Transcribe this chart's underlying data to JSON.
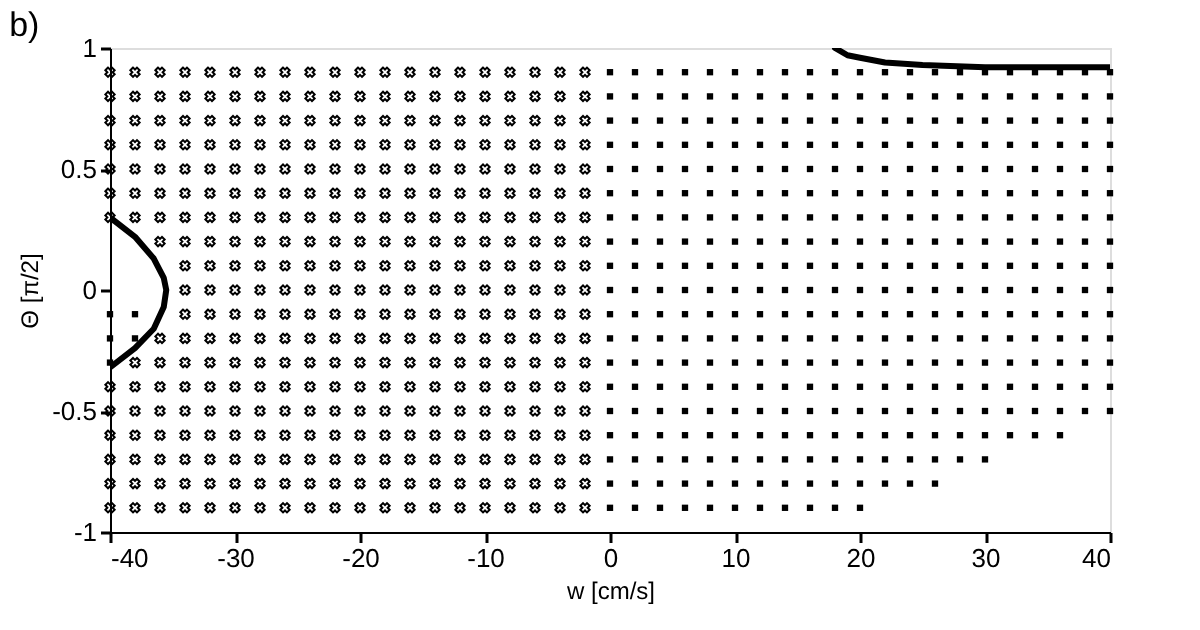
{
  "chart_data": {
    "type": "scatter",
    "xlabel": "w [cm/s]",
    "ylabel": "Θ [π/2]",
    "annotations": [
      "b)"
    ],
    "xlim": [
      -40,
      40
    ],
    "ylim": [
      -1,
      1
    ],
    "xticks": [
      -40,
      -30,
      -20,
      -10,
      0,
      10,
      20,
      30,
      40
    ],
    "yticks": [
      -1,
      -0.5,
      0,
      0.5,
      1
    ],
    "grid": false,
    "series": [
      {
        "marker": "cross",
        "color": "#000000",
        "x": [
          -40,
          -38,
          -36,
          -34,
          -32,
          -30,
          -28,
          -26,
          -24,
          -22,
          -20,
          -18,
          -16,
          -14,
          -12,
          -10,
          -8,
          -6,
          -4,
          -2
        ],
        "values": [
          0.9,
          0.9,
          0.9,
          0.9,
          0.9,
          0.9,
          0.9,
          0.9,
          0.9,
          0.9,
          0.9,
          0.9,
          0.9,
          0.9,
          0.9,
          0.9,
          0.9,
          0.9,
          0.9,
          0.9
        ]
      },
      {
        "marker": "cross",
        "color": "#000000",
        "x": [
          -40,
          -38,
          -36,
          -34,
          -32,
          -30,
          -28,
          -26,
          -24,
          -22,
          -20,
          -18,
          -16,
          -14,
          -12,
          -10,
          -8,
          -6,
          -4,
          -2
        ],
        "values": [
          0.8,
          0.8,
          0.8,
          0.8,
          0.8,
          0.8,
          0.8,
          0.8,
          0.8,
          0.8,
          0.8,
          0.8,
          0.8,
          0.8,
          0.8,
          0.8,
          0.8,
          0.8,
          0.8,
          0.8
        ]
      },
      {
        "marker": "cross",
        "color": "#000000",
        "x": [
          -40,
          -38,
          -36,
          -34,
          -32,
          -30,
          -28,
          -26,
          -24,
          -22,
          -20,
          -18,
          -16,
          -14,
          -12,
          -10,
          -8,
          -6,
          -4,
          -2
        ],
        "values": [
          0.7,
          0.7,
          0.7,
          0.7,
          0.7,
          0.7,
          0.7,
          0.7,
          0.7,
          0.7,
          0.7,
          0.7,
          0.7,
          0.7,
          0.7,
          0.7,
          0.7,
          0.7,
          0.7,
          0.7
        ]
      },
      {
        "marker": "cross",
        "color": "#000000",
        "x": [
          -40,
          -38,
          -36,
          -34,
          -32,
          -30,
          -28,
          -26,
          -24,
          -22,
          -20,
          -18,
          -16,
          -14,
          -12,
          -10,
          -8,
          -6,
          -4,
          -2
        ],
        "values": [
          0.6,
          0.6,
          0.6,
          0.6,
          0.6,
          0.6,
          0.6,
          0.6,
          0.6,
          0.6,
          0.6,
          0.6,
          0.6,
          0.6,
          0.6,
          0.6,
          0.6,
          0.6,
          0.6,
          0.6
        ]
      },
      {
        "marker": "cross",
        "color": "#000000",
        "x": [
          -40,
          -38,
          -36,
          -34,
          -32,
          -30,
          -28,
          -26,
          -24,
          -22,
          -20,
          -18,
          -16,
          -14,
          -12,
          -10,
          -8,
          -6,
          -4,
          -2
        ],
        "values": [
          0.5,
          0.5,
          0.5,
          0.5,
          0.5,
          0.5,
          0.5,
          0.5,
          0.5,
          0.5,
          0.5,
          0.5,
          0.5,
          0.5,
          0.5,
          0.5,
          0.5,
          0.5,
          0.5,
          0.5
        ]
      },
      {
        "marker": "cross",
        "color": "#000000",
        "x": [
          -40,
          -38,
          -36,
          -34,
          -32,
          -30,
          -28,
          -26,
          -24,
          -22,
          -20,
          -18,
          -16,
          -14,
          -12,
          -10,
          -8,
          -6,
          -4,
          -2
        ],
        "values": [
          0.4,
          0.4,
          0.4,
          0.4,
          0.4,
          0.4,
          0.4,
          0.4,
          0.4,
          0.4,
          0.4,
          0.4,
          0.4,
          0.4,
          0.4,
          0.4,
          0.4,
          0.4,
          0.4,
          0.4
        ]
      },
      {
        "marker": "cross",
        "color": "#000000",
        "x": [
          -40,
          -38,
          -36,
          -34,
          -32,
          -30,
          -28,
          -26,
          -24,
          -22,
          -20,
          -18,
          -16,
          -14,
          -12,
          -10,
          -8,
          -6,
          -4,
          -2
        ],
        "values": [
          0.3,
          0.3,
          0.3,
          0.3,
          0.3,
          0.3,
          0.3,
          0.3,
          0.3,
          0.3,
          0.3,
          0.3,
          0.3,
          0.3,
          0.3,
          0.3,
          0.3,
          0.3,
          0.3,
          0.3
        ]
      },
      {
        "marker": "cross",
        "color": "#000000",
        "x": [
          -36,
          -34,
          -32,
          -30,
          -28,
          -26,
          -24,
          -22,
          -20,
          -18,
          -16,
          -14,
          -12,
          -10,
          -8,
          -6,
          -4,
          -2
        ],
        "values": [
          0.2,
          0.2,
          0.2,
          0.2,
          0.2,
          0.2,
          0.2,
          0.2,
          0.2,
          0.2,
          0.2,
          0.2,
          0.2,
          0.2,
          0.2,
          0.2,
          0.2,
          0.2
        ]
      },
      {
        "marker": "cross",
        "color": "#000000",
        "x": [
          -34,
          -32,
          -30,
          -28,
          -26,
          -24,
          -22,
          -20,
          -18,
          -16,
          -14,
          -12,
          -10,
          -8,
          -6,
          -4,
          -2
        ],
        "values": [
          0.1,
          0.1,
          0.1,
          0.1,
          0.1,
          0.1,
          0.1,
          0.1,
          0.1,
          0.1,
          0.1,
          0.1,
          0.1,
          0.1,
          0.1,
          0.1,
          0.1
        ]
      },
      {
        "marker": "cross",
        "color": "#000000",
        "x": [
          -34,
          -32,
          -30,
          -28,
          -26,
          -24,
          -22,
          -20,
          -18,
          -16,
          -14,
          -12,
          -10,
          -8,
          -6,
          -4,
          -2
        ],
        "values": [
          0,
          0,
          0,
          0,
          0,
          0,
          0,
          0,
          0,
          0,
          0,
          0,
          0,
          0,
          0,
          0,
          0
        ]
      },
      {
        "marker": "cross",
        "color": "#000000",
        "x": [
          -34,
          -32,
          -30,
          -28,
          -26,
          -24,
          -22,
          -20,
          -18,
          -16,
          -14,
          -12,
          -10,
          -8,
          -6,
          -4,
          -2
        ],
        "values": [
          -0.1,
          -0.1,
          -0.1,
          -0.1,
          -0.1,
          -0.1,
          -0.1,
          -0.1,
          -0.1,
          -0.1,
          -0.1,
          -0.1,
          -0.1,
          -0.1,
          -0.1,
          -0.1,
          -0.1
        ]
      },
      {
        "marker": "cross",
        "color": "#000000",
        "x": [
          -36,
          -34,
          -32,
          -30,
          -28,
          -26,
          -24,
          -22,
          -20,
          -18,
          -16,
          -14,
          -12,
          -10,
          -8,
          -6,
          -4,
          -2
        ],
        "values": [
          -0.2,
          -0.2,
          -0.2,
          -0.2,
          -0.2,
          -0.2,
          -0.2,
          -0.2,
          -0.2,
          -0.2,
          -0.2,
          -0.2,
          -0.2,
          -0.2,
          -0.2,
          -0.2,
          -0.2,
          -0.2
        ]
      },
      {
        "marker": "cross",
        "color": "#000000",
        "x": [
          -38,
          -36,
          -34,
          -32,
          -30,
          -28,
          -26,
          -24,
          -22,
          -20,
          -18,
          -16,
          -14,
          -12,
          -10,
          -8,
          -6,
          -4,
          -2
        ],
        "values": [
          -0.3,
          -0.3,
          -0.3,
          -0.3,
          -0.3,
          -0.3,
          -0.3,
          -0.3,
          -0.3,
          -0.3,
          -0.3,
          -0.3,
          -0.3,
          -0.3,
          -0.3,
          -0.3,
          -0.3,
          -0.3,
          -0.3
        ]
      },
      {
        "marker": "cross",
        "color": "#000000",
        "x": [
          -40,
          -38,
          -36,
          -34,
          -32,
          -30,
          -28,
          -26,
          -24,
          -22,
          -20,
          -18,
          -16,
          -14,
          -12,
          -10,
          -8,
          -6,
          -4,
          -2
        ],
        "values": [
          -0.4,
          -0.4,
          -0.4,
          -0.4,
          -0.4,
          -0.4,
          -0.4,
          -0.4,
          -0.4,
          -0.4,
          -0.4,
          -0.4,
          -0.4,
          -0.4,
          -0.4,
          -0.4,
          -0.4,
          -0.4,
          -0.4,
          -0.4
        ]
      },
      {
        "marker": "cross",
        "color": "#000000",
        "x": [
          -40,
          -38,
          -36,
          -34,
          -32,
          -30,
          -28,
          -26,
          -24,
          -22,
          -20,
          -18,
          -16,
          -14,
          -12,
          -10,
          -8,
          -6,
          -4,
          -2
        ],
        "values": [
          -0.5,
          -0.5,
          -0.5,
          -0.5,
          -0.5,
          -0.5,
          -0.5,
          -0.5,
          -0.5,
          -0.5,
          -0.5,
          -0.5,
          -0.5,
          -0.5,
          -0.5,
          -0.5,
          -0.5,
          -0.5,
          -0.5,
          -0.5
        ]
      },
      {
        "marker": "cross",
        "color": "#000000",
        "x": [
          -40,
          -38,
          -36,
          -34,
          -32,
          -30,
          -28,
          -26,
          -24,
          -22,
          -20,
          -18,
          -16,
          -14,
          -12,
          -10,
          -8,
          -6,
          -4,
          -2
        ],
        "values": [
          -0.6,
          -0.6,
          -0.6,
          -0.6,
          -0.6,
          -0.6,
          -0.6,
          -0.6,
          -0.6,
          -0.6,
          -0.6,
          -0.6,
          -0.6,
          -0.6,
          -0.6,
          -0.6,
          -0.6,
          -0.6,
          -0.6,
          -0.6
        ]
      },
      {
        "marker": "cross",
        "color": "#000000",
        "x": [
          -40,
          -38,
          -36,
          -34,
          -32,
          -30,
          -28,
          -26,
          -24,
          -22,
          -20,
          -18,
          -16,
          -14,
          -12,
          -10,
          -8,
          -6,
          -4,
          -2
        ],
        "values": [
          -0.7,
          -0.7,
          -0.7,
          -0.7,
          -0.7,
          -0.7,
          -0.7,
          -0.7,
          -0.7,
          -0.7,
          -0.7,
          -0.7,
          -0.7,
          -0.7,
          -0.7,
          -0.7,
          -0.7,
          -0.7,
          -0.7,
          -0.7
        ]
      },
      {
        "marker": "cross",
        "color": "#000000",
        "x": [
          -40,
          -38,
          -36,
          -34,
          -32,
          -30,
          -28,
          -26,
          -24,
          -22,
          -20,
          -18,
          -16,
          -14,
          -12,
          -10,
          -8,
          -6,
          -4,
          -2
        ],
        "values": [
          -0.8,
          -0.8,
          -0.8,
          -0.8,
          -0.8,
          -0.8,
          -0.8,
          -0.8,
          -0.8,
          -0.8,
          -0.8,
          -0.8,
          -0.8,
          -0.8,
          -0.8,
          -0.8,
          -0.8,
          -0.8,
          -0.8,
          -0.8
        ]
      },
      {
        "marker": "cross",
        "color": "#000000",
        "x": [
          -40,
          -38,
          -36,
          -34,
          -32,
          -30,
          -28,
          -26,
          -24,
          -22,
          -20,
          -18,
          -16,
          -14,
          -12,
          -10,
          -8,
          -6,
          -4,
          -2
        ],
        "values": [
          -0.9,
          -0.9,
          -0.9,
          -0.9,
          -0.9,
          -0.9,
          -0.9,
          -0.9,
          -0.9,
          -0.9,
          -0.9,
          -0.9,
          -0.9,
          -0.9,
          -0.9,
          -0.9,
          -0.9,
          -0.9,
          -0.9,
          -0.9
        ]
      },
      {
        "marker": "square",
        "color": "#000000",
        "x": [
          0,
          2,
          4,
          6,
          8,
          10,
          12,
          14,
          16,
          18,
          20,
          22,
          24,
          26,
          28,
          30,
          32,
          34,
          36,
          38,
          40
        ],
        "values": [
          0.9,
          0.9,
          0.9,
          0.9,
          0.9,
          0.9,
          0.9,
          0.9,
          0.9,
          0.9,
          0.9,
          0.9,
          0.9,
          0.9,
          0.9,
          0.9,
          0.9,
          0.9,
          0.9,
          0.9,
          0.9
        ]
      },
      {
        "marker": "square",
        "color": "#000000",
        "x": [
          0,
          2,
          4,
          6,
          8,
          10,
          12,
          14,
          16,
          18,
          20,
          22,
          24,
          26,
          28,
          30,
          32,
          34,
          36,
          38,
          40
        ],
        "values": [
          0.8,
          0.8,
          0.8,
          0.8,
          0.8,
          0.8,
          0.8,
          0.8,
          0.8,
          0.8,
          0.8,
          0.8,
          0.8,
          0.8,
          0.8,
          0.8,
          0.8,
          0.8,
          0.8,
          0.8,
          0.8
        ]
      },
      {
        "marker": "square",
        "color": "#000000",
        "x": [
          0,
          2,
          4,
          6,
          8,
          10,
          12,
          14,
          16,
          18,
          20,
          22,
          24,
          26,
          28,
          30,
          32,
          34,
          36,
          38,
          40
        ],
        "values": [
          0.7,
          0.7,
          0.7,
          0.7,
          0.7,
          0.7,
          0.7,
          0.7,
          0.7,
          0.7,
          0.7,
          0.7,
          0.7,
          0.7,
          0.7,
          0.7,
          0.7,
          0.7,
          0.7,
          0.7,
          0.7
        ]
      },
      {
        "marker": "square",
        "color": "#000000",
        "x": [
          0,
          2,
          4,
          6,
          8,
          10,
          12,
          14,
          16,
          18,
          20,
          22,
          24,
          26,
          28,
          30,
          32,
          34,
          36,
          38,
          40
        ],
        "values": [
          0.6,
          0.6,
          0.6,
          0.6,
          0.6,
          0.6,
          0.6,
          0.6,
          0.6,
          0.6,
          0.6,
          0.6,
          0.6,
          0.6,
          0.6,
          0.6,
          0.6,
          0.6,
          0.6,
          0.6,
          0.6
        ]
      },
      {
        "marker": "square",
        "color": "#000000",
        "x": [
          0,
          2,
          4,
          6,
          8,
          10,
          12,
          14,
          16,
          18,
          20,
          22,
          24,
          26,
          28,
          30,
          32,
          34,
          36,
          38,
          40
        ],
        "values": [
          0.5,
          0.5,
          0.5,
          0.5,
          0.5,
          0.5,
          0.5,
          0.5,
          0.5,
          0.5,
          0.5,
          0.5,
          0.5,
          0.5,
          0.5,
          0.5,
          0.5,
          0.5,
          0.5,
          0.5,
          0.5
        ]
      },
      {
        "marker": "square",
        "color": "#000000",
        "x": [
          0,
          2,
          4,
          6,
          8,
          10,
          12,
          14,
          16,
          18,
          20,
          22,
          24,
          26,
          28,
          30,
          32,
          34,
          36,
          38,
          40
        ],
        "values": [
          0.4,
          0.4,
          0.4,
          0.4,
          0.4,
          0.4,
          0.4,
          0.4,
          0.4,
          0.4,
          0.4,
          0.4,
          0.4,
          0.4,
          0.4,
          0.4,
          0.4,
          0.4,
          0.4,
          0.4,
          0.4
        ]
      },
      {
        "marker": "square",
        "color": "#000000",
        "x": [
          0,
          2,
          4,
          6,
          8,
          10,
          12,
          14,
          16,
          18,
          20,
          22,
          24,
          26,
          28,
          30,
          32,
          34,
          36,
          38,
          40
        ],
        "values": [
          0.3,
          0.3,
          0.3,
          0.3,
          0.3,
          0.3,
          0.3,
          0.3,
          0.3,
          0.3,
          0.3,
          0.3,
          0.3,
          0.3,
          0.3,
          0.3,
          0.3,
          0.3,
          0.3,
          0.3,
          0.3
        ]
      },
      {
        "marker": "square",
        "color": "#000000",
        "x": [
          0,
          2,
          4,
          6,
          8,
          10,
          12,
          14,
          16,
          18,
          20,
          22,
          24,
          26,
          28,
          30,
          32,
          34,
          36,
          38,
          40
        ],
        "values": [
          0.2,
          0.2,
          0.2,
          0.2,
          0.2,
          0.2,
          0.2,
          0.2,
          0.2,
          0.2,
          0.2,
          0.2,
          0.2,
          0.2,
          0.2,
          0.2,
          0.2,
          0.2,
          0.2,
          0.2,
          0.2
        ]
      },
      {
        "marker": "square",
        "color": "#000000",
        "x": [
          0,
          2,
          4,
          6,
          8,
          10,
          12,
          14,
          16,
          18,
          20,
          22,
          24,
          26,
          28,
          30,
          32,
          34,
          36,
          38,
          40
        ],
        "values": [
          0.1,
          0.1,
          0.1,
          0.1,
          0.1,
          0.1,
          0.1,
          0.1,
          0.1,
          0.1,
          0.1,
          0.1,
          0.1,
          0.1,
          0.1,
          0.1,
          0.1,
          0.1,
          0.1,
          0.1,
          0.1
        ]
      },
      {
        "marker": "square",
        "color": "#000000",
        "x": [
          0,
          2,
          4,
          6,
          8,
          10,
          12,
          14,
          16,
          18,
          20,
          22,
          24,
          26,
          28,
          30,
          32,
          34,
          36,
          38,
          40
        ],
        "values": [
          0,
          0,
          0,
          0,
          0,
          0,
          0,
          0,
          0,
          0,
          0,
          0,
          0,
          0,
          0,
          0,
          0,
          0,
          0,
          0,
          0
        ]
      },
      {
        "marker": "square",
        "color": "#000000",
        "x": [
          -40,
          -38,
          0,
          2,
          4,
          6,
          8,
          10,
          12,
          14,
          16,
          18,
          20,
          22,
          24,
          26,
          28,
          30,
          32,
          34,
          36,
          38,
          40
        ],
        "values": [
          -0.1,
          -0.1,
          -0.1,
          -0.1,
          -0.1,
          -0.1,
          -0.1,
          -0.1,
          -0.1,
          -0.1,
          -0.1,
          -0.1,
          -0.1,
          -0.1,
          -0.1,
          -0.1,
          -0.1,
          -0.1,
          -0.1,
          -0.1,
          -0.1,
          -0.1,
          -0.1
        ]
      },
      {
        "marker": "square",
        "color": "#000000",
        "x": [
          -40,
          -38,
          0,
          2,
          4,
          6,
          8,
          10,
          12,
          14,
          16,
          18,
          20,
          22,
          24,
          26,
          28,
          30,
          32,
          34,
          36,
          38,
          40
        ],
        "values": [
          -0.2,
          -0.2,
          -0.2,
          -0.2,
          -0.2,
          -0.2,
          -0.2,
          -0.2,
          -0.2,
          -0.2,
          -0.2,
          -0.2,
          -0.2,
          -0.2,
          -0.2,
          -0.2,
          -0.2,
          -0.2,
          -0.2,
          -0.2,
          -0.2,
          -0.2,
          -0.2
        ]
      },
      {
        "marker": "square",
        "color": "#000000",
        "x": [
          -40,
          0,
          2,
          4,
          6,
          8,
          10,
          12,
          14,
          16,
          18,
          20,
          22,
          24,
          26,
          28,
          30,
          32,
          34,
          36,
          38,
          40
        ],
        "values": [
          -0.3,
          -0.3,
          -0.3,
          -0.3,
          -0.3,
          -0.3,
          -0.3,
          -0.3,
          -0.3,
          -0.3,
          -0.3,
          -0.3,
          -0.3,
          -0.3,
          -0.3,
          -0.3,
          -0.3,
          -0.3,
          -0.3,
          -0.3,
          -0.3,
          -0.3
        ]
      },
      {
        "marker": "square",
        "color": "#000000",
        "x": [
          0,
          2,
          4,
          6,
          8,
          10,
          12,
          14,
          16,
          18,
          20,
          22,
          24,
          26,
          28,
          30,
          32,
          34,
          36,
          38,
          40
        ],
        "values": [
          -0.4,
          -0.4,
          -0.4,
          -0.4,
          -0.4,
          -0.4,
          -0.4,
          -0.4,
          -0.4,
          -0.4,
          -0.4,
          -0.4,
          -0.4,
          -0.4,
          -0.4,
          -0.4,
          -0.4,
          -0.4,
          -0.4,
          -0.4,
          -0.4
        ]
      },
      {
        "marker": "square",
        "color": "#000000",
        "x": [
          0,
          2,
          4,
          6,
          8,
          10,
          12,
          14,
          16,
          18,
          20,
          22,
          24,
          26,
          28,
          30,
          32,
          34,
          36,
          38,
          40
        ],
        "values": [
          -0.5,
          -0.5,
          -0.5,
          -0.5,
          -0.5,
          -0.5,
          -0.5,
          -0.5,
          -0.5,
          -0.5,
          -0.5,
          -0.5,
          -0.5,
          -0.5,
          -0.5,
          -0.5,
          -0.5,
          -0.5,
          -0.5,
          -0.5,
          -0.5
        ]
      },
      {
        "marker": "square",
        "color": "#000000",
        "x": [
          0,
          2,
          4,
          6,
          8,
          10,
          12,
          14,
          16,
          18,
          20,
          22,
          24,
          26,
          28,
          30,
          32,
          34,
          36
        ],
        "values": [
          -0.6,
          -0.6,
          -0.6,
          -0.6,
          -0.6,
          -0.6,
          -0.6,
          -0.6,
          -0.6,
          -0.6,
          -0.6,
          -0.6,
          -0.6,
          -0.6,
          -0.6,
          -0.6,
          -0.6,
          -0.6,
          -0.6
        ]
      },
      {
        "marker": "square",
        "color": "#000000",
        "x": [
          0,
          2,
          4,
          6,
          8,
          10,
          12,
          14,
          16,
          18,
          20,
          22,
          24,
          26,
          28,
          30
        ],
        "values": [
          -0.7,
          -0.7,
          -0.7,
          -0.7,
          -0.7,
          -0.7,
          -0.7,
          -0.7,
          -0.7,
          -0.7,
          -0.7,
          -0.7,
          -0.7,
          -0.7,
          -0.7,
          -0.7
        ]
      },
      {
        "marker": "square",
        "color": "#000000",
        "x": [
          0,
          2,
          4,
          6,
          8,
          10,
          12,
          14,
          16,
          18,
          20,
          22,
          24,
          26
        ],
        "values": [
          -0.8,
          -0.8,
          -0.8,
          -0.8,
          -0.8,
          -0.8,
          -0.8,
          -0.8,
          -0.8,
          -0.8,
          -0.8,
          -0.8,
          -0.8,
          -0.8
        ]
      },
      {
        "marker": "square",
        "color": "#000000",
        "x": [
          0,
          2,
          4,
          6,
          8,
          10,
          12,
          14,
          16,
          18,
          20
        ],
        "values": [
          -0.9,
          -0.9,
          -0.9,
          -0.9,
          -0.9,
          -0.9,
          -0.9,
          -0.9,
          -0.9,
          -0.9,
          -0.9
        ]
      },
      {
        "type": "line",
        "marker": "none",
        "color": "#000000",
        "x": [
          -40,
          -38,
          -36.5,
          -35.7,
          -35.5,
          -35.7,
          -36.5,
          -38,
          -40
        ],
        "values": [
          0.3,
          0.22,
          0.13,
          0.05,
          0,
          -0.07,
          -0.16,
          -0.24,
          -0.32
        ]
      },
      {
        "type": "line",
        "marker": "none",
        "color": "#000000",
        "x": [
          18,
          19,
          20,
          22,
          25,
          30,
          40
        ],
        "values": [
          1,
          0.97,
          0.96,
          0.94,
          0.93,
          0.92,
          0.92
        ]
      }
    ]
  }
}
